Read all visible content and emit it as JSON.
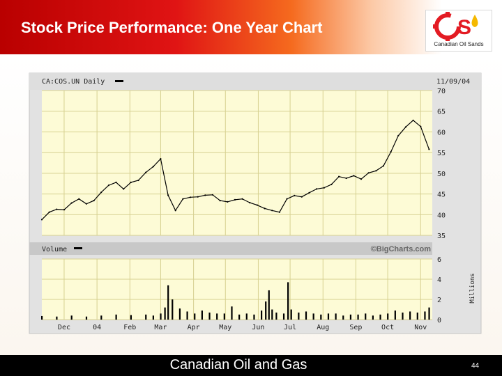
{
  "slide": {
    "title": "Stock Price Performance: One Year Chart",
    "footer": "Canadian Oil and Gas",
    "page_number": "44"
  },
  "logo": {
    "text": "Canadian Oil Sands",
    "icon": "cos-logo-icon",
    "colors": {
      "primary": "#e31b23",
      "accent": "#f5b800"
    }
  },
  "colors": {
    "header_red": "#d40000",
    "header_orange": "#f56a1e",
    "plot_bg": "#fdfbd6",
    "grid": "#d6d090",
    "band_bg": "#c8c8c8",
    "frame_bg": "#e2e2e2",
    "line": "#000000"
  },
  "chart_data": {
    "type": "line",
    "symbol_label": "CA:COS.UN Daily",
    "date_label": "11/09/04",
    "volume_label": "Volume",
    "source": "©BigCharts.com",
    "volume_unit": "Millions",
    "x_tick_labels": [
      "Dec",
      "04",
      "Feb",
      "Mar",
      "Apr",
      "May",
      "Jun",
      "Jul",
      "Aug",
      "Sep",
      "Oct",
      "Nov"
    ],
    "price_axis": {
      "ylim": [
        35,
        70
      ],
      "ticks": [
        "70",
        "65",
        "60",
        "55",
        "50",
        "45",
        "40",
        "35"
      ]
    },
    "volume_axis": {
      "ylim": [
        0,
        6
      ],
      "ticks": [
        "6",
        "4",
        "2",
        "0"
      ]
    },
    "grid": true,
    "price_series": {
      "name": "CA:COS.UN",
      "x": [
        "2003-11-10",
        "2003-11-17",
        "2003-11-24",
        "2003-12-01",
        "2003-12-08",
        "2003-12-15",
        "2003-12-22",
        "2003-12-29",
        "2004-01-05",
        "2004-01-12",
        "2004-01-19",
        "2004-01-26",
        "2004-02-02",
        "2004-02-09",
        "2004-02-16",
        "2004-02-23",
        "2004-03-01",
        "2004-03-08",
        "2004-03-15",
        "2004-03-22",
        "2004-03-29",
        "2004-04-05",
        "2004-04-12",
        "2004-04-19",
        "2004-04-26",
        "2004-05-03",
        "2004-05-10",
        "2004-05-17",
        "2004-05-24",
        "2004-05-31",
        "2004-06-07",
        "2004-06-14",
        "2004-06-21",
        "2004-06-28",
        "2004-07-05",
        "2004-07-12",
        "2004-07-19",
        "2004-07-26",
        "2004-08-02",
        "2004-08-09",
        "2004-08-16",
        "2004-08-23",
        "2004-08-30",
        "2004-09-06",
        "2004-09-13",
        "2004-09-20",
        "2004-09-27",
        "2004-10-04",
        "2004-10-11",
        "2004-10-18",
        "2004-10-25",
        "2004-11-01",
        "2004-11-09"
      ],
      "values": [
        38.8,
        40.6,
        41.3,
        41.2,
        42.8,
        43.8,
        42.6,
        43.4,
        45.4,
        47.1,
        47.8,
        46.2,
        47.8,
        48.3,
        50.2,
        51.6,
        53.5,
        44.7,
        41.0,
        43.8,
        44.2,
        44.3,
        44.7,
        44.8,
        43.4,
        43.1,
        43.6,
        43.8,
        42.9,
        42.3,
        41.5,
        41.0,
        40.6,
        43.8,
        44.6,
        44.3,
        45.3,
        46.2,
        46.5,
        47.3,
        49.2,
        48.8,
        49.4,
        48.6,
        50.1,
        50.6,
        51.8,
        55.2,
        59.1,
        61.2,
        62.8,
        61.3,
        55.8
      ]
    },
    "volume_series": {
      "name": "Volume",
      "x": [
        "2003-11-10",
        "2003-11-24",
        "2003-12-08",
        "2003-12-22",
        "2004-01-05",
        "2004-01-19",
        "2004-02-02",
        "2004-02-16",
        "2004-02-23",
        "2004-03-01",
        "2004-03-05",
        "2004-03-08",
        "2004-03-12",
        "2004-03-19",
        "2004-03-26",
        "2004-04-02",
        "2004-04-09",
        "2004-04-16",
        "2004-04-23",
        "2004-04-30",
        "2004-05-07",
        "2004-05-14",
        "2004-05-21",
        "2004-05-28",
        "2004-06-04",
        "2004-06-08",
        "2004-06-11",
        "2004-06-14",
        "2004-06-18",
        "2004-06-25",
        "2004-06-29",
        "2004-07-02",
        "2004-07-09",
        "2004-07-16",
        "2004-07-23",
        "2004-07-30",
        "2004-08-06",
        "2004-08-13",
        "2004-08-20",
        "2004-08-27",
        "2004-09-03",
        "2004-09-10",
        "2004-09-17",
        "2004-09-24",
        "2004-10-01",
        "2004-10-08",
        "2004-10-15",
        "2004-10-22",
        "2004-10-29",
        "2004-11-05",
        "2004-11-09"
      ],
      "values": [
        0.35,
        0.3,
        0.4,
        0.3,
        0.4,
        0.5,
        0.45,
        0.5,
        0.4,
        0.6,
        1.2,
        3.4,
        2.0,
        1.1,
        0.8,
        0.6,
        0.9,
        0.7,
        0.6,
        0.6,
        1.3,
        0.5,
        0.6,
        0.5,
        0.9,
        1.8,
        2.9,
        1.0,
        0.7,
        0.6,
        3.7,
        1.0,
        0.7,
        0.8,
        0.6,
        0.5,
        0.6,
        0.6,
        0.4,
        0.5,
        0.5,
        0.6,
        0.4,
        0.5,
        0.6,
        0.9,
        0.7,
        0.8,
        0.7,
        0.8,
        1.2
      ]
    }
  }
}
